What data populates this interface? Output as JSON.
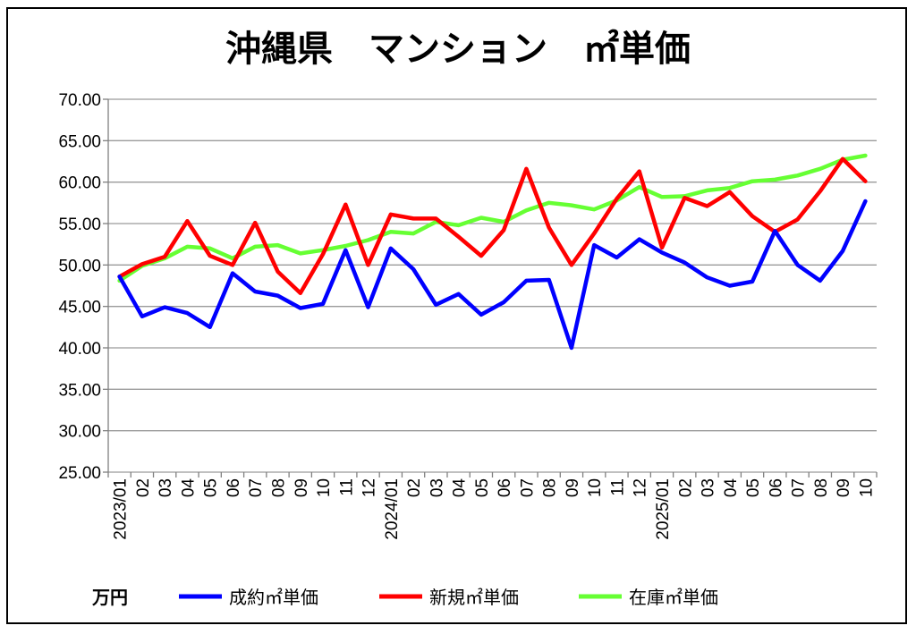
{
  "chart_data": {
    "type": "line",
    "title": "沖縄県　マンション　㎡単価",
    "unit_label": "万円",
    "ylim": [
      25,
      70
    ],
    "y_ticks": [
      "70.00",
      "65.00",
      "60.00",
      "55.00",
      "50.00",
      "45.00",
      "40.00",
      "35.00",
      "30.00",
      "25.00"
    ],
    "categories": [
      "2023/01",
      "02",
      "03",
      "04",
      "05",
      "06",
      "07",
      "08",
      "09",
      "10",
      "11",
      "12",
      "2024/01",
      "02",
      "03",
      "04",
      "05",
      "06",
      "07",
      "08",
      "09",
      "10",
      "11",
      "12",
      "2025/01",
      "02",
      "03",
      "04",
      "05",
      "06",
      "07",
      "08",
      "09",
      "10"
    ],
    "series": [
      {
        "name": "成約㎡単価",
        "color": "#0000FF",
        "values": [
          48.6,
          43.8,
          44.9,
          44.2,
          42.5,
          49.0,
          46.8,
          46.3,
          44.8,
          45.3,
          51.8,
          44.9,
          52.0,
          49.5,
          45.2,
          46.5,
          44.0,
          45.5,
          48.1,
          48.2,
          40.0,
          52.4,
          50.9,
          53.1,
          51.5,
          50.3,
          48.5,
          47.5,
          48.0,
          54.1,
          50.0,
          48.1,
          51.7,
          57.7
        ]
      },
      {
        "name": "新規㎡単価",
        "color": "#FF0000",
        "values": [
          48.6,
          50.1,
          51.0,
          55.3,
          51.1,
          50.0,
          55.1,
          49.2,
          46.6,
          51.3,
          57.3,
          50.0,
          56.1,
          55.6,
          55.6,
          53.4,
          51.1,
          54.2,
          61.6,
          54.5,
          50.0,
          53.8,
          58.0,
          61.3,
          52.1,
          58.1,
          57.1,
          58.8,
          55.9,
          54.0,
          55.5,
          58.9,
          62.8,
          60.1
        ]
      },
      {
        "name": "在庫㎡単価",
        "color": "#66FF33",
        "values": [
          48.1,
          49.9,
          50.8,
          52.2,
          52.0,
          50.8,
          52.2,
          52.4,
          51.4,
          51.8,
          52.3,
          53.0,
          54.0,
          53.8,
          55.2,
          54.8,
          55.7,
          55.2,
          56.6,
          57.5,
          57.2,
          56.7,
          57.8,
          59.4,
          58.2,
          58.3,
          59.0,
          59.3,
          60.1,
          60.3,
          60.8,
          61.6,
          62.7,
          63.2
        ]
      }
    ]
  }
}
